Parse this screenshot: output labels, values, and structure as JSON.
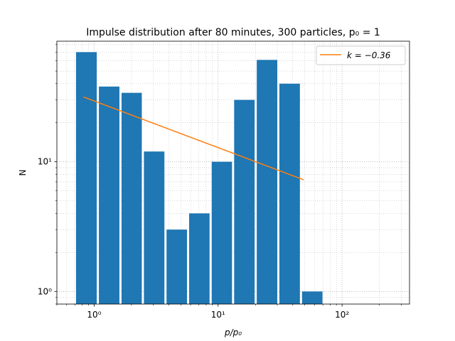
{
  "chart_data": {
    "type": "bar",
    "title": "Impulse distribution after 80 minutes, 300 particles, p₀ = 1",
    "xlabel": "p/p₀",
    "ylabel": "N",
    "xscale": "log",
    "yscale": "log",
    "xlim": [
      0.5,
      350
    ],
    "ylim": [
      0.8,
      85
    ],
    "grid": true,
    "legend_position": "top-right",
    "bar_color": "#1f77b4",
    "line_color": "#ff7f0e",
    "x_ticks": [
      {
        "value": 1,
        "label": "10⁰"
      },
      {
        "value": 10,
        "label": "10¹"
      },
      {
        "value": 100,
        "label": "10²"
      }
    ],
    "y_ticks": [
      {
        "value": 1,
        "label": "10⁰"
      },
      {
        "value": 10,
        "label": "10¹"
      }
    ],
    "series": [
      {
        "kind": "bar",
        "bins": [
          {
            "left": 0.7,
            "right": 1.07,
            "value": 70
          },
          {
            "left": 1.07,
            "right": 1.63,
            "value": 38
          },
          {
            "left": 1.63,
            "right": 2.47,
            "value": 34
          },
          {
            "left": 2.47,
            "right": 3.76,
            "value": 12
          },
          {
            "left": 3.76,
            "right": 5.72,
            "value": 3
          },
          {
            "left": 5.72,
            "right": 8.7,
            "value": 4
          },
          {
            "left": 8.7,
            "right": 13.2,
            "value": 10
          },
          {
            "left": 13.2,
            "right": 20.1,
            "value": 30
          },
          {
            "left": 20.1,
            "right": 30.6,
            "value": 61
          },
          {
            "left": 30.6,
            "right": 46.6,
            "value": 40
          },
          {
            "left": 46.6,
            "right": 70.9,
            "value": 1
          }
        ]
      },
      {
        "kind": "line",
        "name": "k = −0.36",
        "points": [
          {
            "x": 0.82,
            "y": 31.6
          },
          {
            "x": 49,
            "y": 7.26
          }
        ]
      }
    ]
  }
}
